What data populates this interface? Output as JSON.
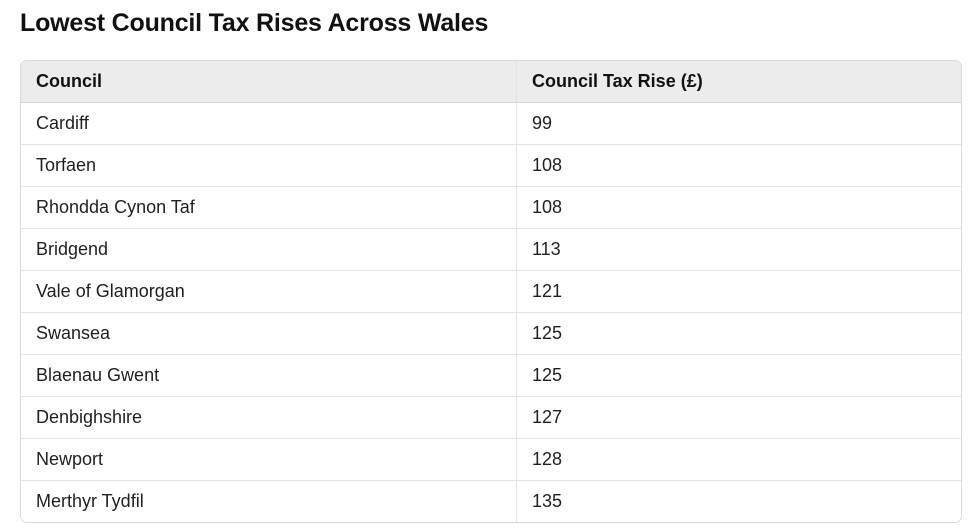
{
  "page": {
    "title": "Lowest Council Tax Rises Across Wales"
  },
  "table": {
    "headers": [
      "Council",
      "Council Tax Rise (£)"
    ],
    "rows": [
      [
        "Cardiff",
        "99"
      ],
      [
        "Torfaen",
        "108"
      ],
      [
        "Rhondda Cynon Taf",
        "108"
      ],
      [
        "Bridgend",
        "113"
      ],
      [
        "Vale of Glamorgan",
        "121"
      ],
      [
        "Swansea",
        "125"
      ],
      [
        "Blaenau Gwent",
        "125"
      ],
      [
        "Denbighshire",
        "127"
      ],
      [
        "Newport",
        "128"
      ],
      [
        "Merthyr Tydfil",
        "135"
      ]
    ]
  }
}
